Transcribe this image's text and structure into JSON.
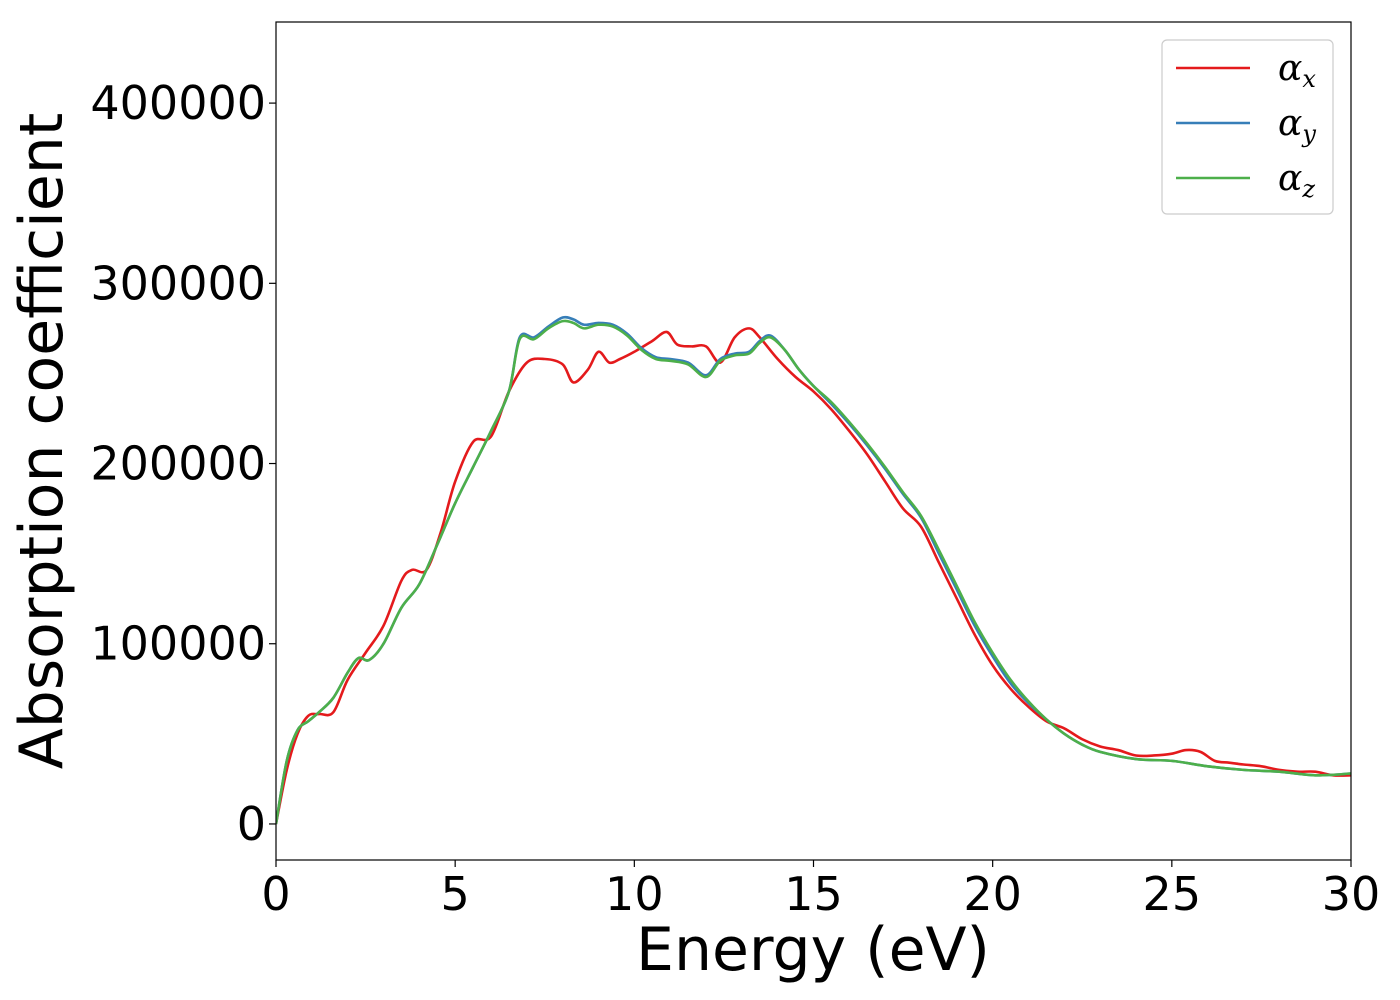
{
  "chart_data": {
    "type": "line",
    "xlabel": "Energy (eV)",
    "ylabel": "Absorption coefficient",
    "xlim": [
      0,
      30
    ],
    "ylim": [
      -20000,
      445000
    ],
    "xticks": [
      0,
      5,
      10,
      15,
      20,
      25,
      30
    ],
    "xtick_labels": [
      "0",
      "5",
      "10",
      "15",
      "20",
      "25",
      "30"
    ],
    "yticks": [
      0,
      100000,
      200000,
      300000,
      400000
    ],
    "ytick_labels": [
      "0",
      "100000",
      "200000",
      "300000",
      "400000"
    ],
    "grid": false,
    "legend_position": "top-right",
    "series": [
      {
        "name": "αx",
        "name_base": "α",
        "name_sub": "x",
        "color": "#e41a1c",
        "x": [
          0,
          0.3,
          0.6,
          0.9,
          1.2,
          1.6,
          2.0,
          2.5,
          3.0,
          3.5,
          3.8,
          4.2,
          4.6,
          5.0,
          5.5,
          6.0,
          6.5,
          7.0,
          7.5,
          8.0,
          8.3,
          8.7,
          9.0,
          9.3,
          9.6,
          10.0,
          10.5,
          10.9,
          11.2,
          11.6,
          12.0,
          12.4,
          12.8,
          13.2,
          13.5,
          14.0,
          14.5,
          15.0,
          15.5,
          16.0,
          16.5,
          17.0,
          17.5,
          18.0,
          18.5,
          19.0,
          19.5,
          20.0,
          20.5,
          21.0,
          21.5,
          22.0,
          22.5,
          23.0,
          23.5,
          24.0,
          24.5,
          25.0,
          25.4,
          25.8,
          26.2,
          26.6,
          27.0,
          27.5,
          28.0,
          28.5,
          29.0,
          29.5,
          30.0
        ],
        "y": [
          0,
          30000,
          50000,
          60000,
          61000,
          62000,
          80000,
          95000,
          110000,
          135000,
          141000,
          141000,
          162000,
          190000,
          212000,
          215000,
          240000,
          256000,
          258000,
          255000,
          245000,
          252000,
          262000,
          256000,
          258000,
          262000,
          268000,
          273000,
          266000,
          265000,
          265000,
          256000,
          270000,
          275000,
          270000,
          258000,
          248000,
          240000,
          230000,
          218000,
          205000,
          190000,
          175000,
          165000,
          145000,
          125000,
          105000,
          88000,
          75000,
          65000,
          57000,
          53000,
          47000,
          43000,
          41000,
          38000,
          38000,
          39000,
          41000,
          40000,
          35000,
          34000,
          33000,
          32000,
          30000,
          29000,
          29000,
          27000,
          27000
        ]
      },
      {
        "name": "αy",
        "name_base": "α",
        "name_sub": "y",
        "color": "#377eb8",
        "x": [
          0,
          0.3,
          0.6,
          0.9,
          1.2,
          1.6,
          2.0,
          2.3,
          2.6,
          3.0,
          3.5,
          4.0,
          4.5,
          5.0,
          5.5,
          6.0,
          6.5,
          6.8,
          7.2,
          7.6,
          8.0,
          8.3,
          8.6,
          9.0,
          9.4,
          9.8,
          10.2,
          10.6,
          11.0,
          11.5,
          12.0,
          12.4,
          12.8,
          13.2,
          13.5,
          13.8,
          14.2,
          14.6,
          15.0,
          15.5,
          16.0,
          16.5,
          17.0,
          17.5,
          18.0,
          18.5,
          19.0,
          19.5,
          20.0,
          20.5,
          21.0,
          21.5,
          22.0,
          22.5,
          23.0,
          24.0,
          25.0,
          26.0,
          27.0,
          28.0,
          29.0,
          30.0
        ],
        "y": [
          0,
          35000,
          52000,
          57000,
          62000,
          70000,
          84000,
          92000,
          91000,
          100000,
          120000,
          133000,
          155000,
          178000,
          198000,
          218000,
          240000,
          270000,
          270000,
          276000,
          281000,
          280000,
          277000,
          278000,
          277000,
          272000,
          264000,
          259000,
          258000,
          256000,
          249000,
          258000,
          261000,
          262000,
          268000,
          271000,
          263000,
          252000,
          243000,
          233000,
          222000,
          210000,
          197000,
          183000,
          170000,
          150000,
          130000,
          110000,
          93000,
          78000,
          67000,
          58000,
          50000,
          44000,
          40000,
          36000,
          35000,
          32000,
          30000,
          29000,
          27000,
          28000
        ]
      },
      {
        "name": "αz",
        "name_base": "α",
        "name_sub": "z",
        "color": "#4daf4a",
        "x": [
          0,
          0.3,
          0.6,
          0.9,
          1.2,
          1.6,
          2.0,
          2.3,
          2.6,
          3.0,
          3.5,
          4.0,
          4.5,
          5.0,
          5.5,
          6.0,
          6.5,
          6.8,
          7.2,
          7.6,
          8.0,
          8.3,
          8.6,
          9.0,
          9.4,
          9.8,
          10.2,
          10.6,
          11.0,
          11.5,
          12.0,
          12.4,
          12.8,
          13.2,
          13.5,
          13.8,
          14.2,
          14.6,
          15.0,
          15.5,
          16.0,
          16.5,
          17.0,
          17.5,
          18.0,
          18.5,
          19.0,
          19.5,
          20.0,
          20.5,
          21.0,
          21.5,
          22.0,
          22.5,
          23.0,
          24.0,
          25.0,
          26.0,
          27.0,
          28.0,
          29.0,
          30.0
        ],
        "y": [
          0,
          35000,
          52000,
          57000,
          62000,
          70000,
          84000,
          92000,
          91000,
          100000,
          120000,
          133000,
          155000,
          178000,
          198000,
          218000,
          240000,
          269000,
          269000,
          275000,
          279000,
          278000,
          275000,
          277000,
          276000,
          271000,
          263000,
          258000,
          257000,
          255000,
          248000,
          257000,
          260000,
          261000,
          267000,
          270000,
          263000,
          252000,
          243000,
          234000,
          223000,
          211000,
          198000,
          184000,
          171000,
          152000,
          132000,
          112000,
          95000,
          80000,
          68000,
          58000,
          50000,
          44000,
          40000,
          36000,
          35000,
          32000,
          30000,
          29000,
          27000,
          28000
        ]
      }
    ]
  }
}
